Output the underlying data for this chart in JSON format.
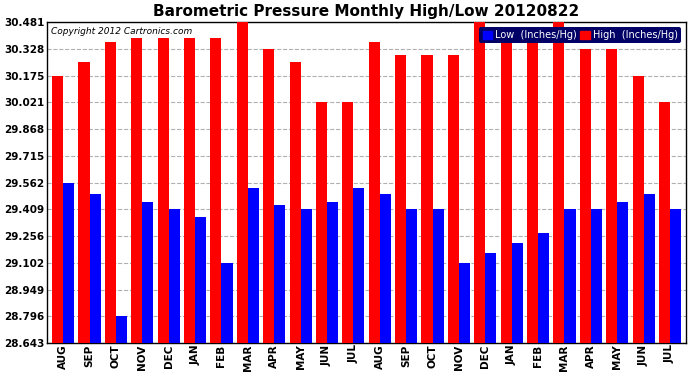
{
  "title": "Barometric Pressure Monthly High/Low 20120822",
  "copyright": "Copyright 2012 Cartronics.com",
  "legend_low": "Low  (Inches/Hg)",
  "legend_high": "High  (Inches/Hg)",
  "months": [
    "AUG",
    "SEP",
    "OCT",
    "NOV",
    "DEC",
    "JAN",
    "FEB",
    "MAR",
    "APR",
    "MAY",
    "JUN",
    "JUL",
    "AUG",
    "SEP",
    "OCT",
    "NOV",
    "DEC",
    "JAN",
    "FEB",
    "MAR",
    "APR",
    "MAY",
    "JUN",
    "JUL"
  ],
  "high_values": [
    30.175,
    30.255,
    30.368,
    30.388,
    30.388,
    30.388,
    30.388,
    30.481,
    30.328,
    30.255,
    30.021,
    30.021,
    30.368,
    30.295,
    30.295,
    30.295,
    30.481,
    30.388,
    30.388,
    30.481,
    30.328,
    30.328,
    30.175,
    30.021
  ],
  "low_values": [
    29.562,
    29.495,
    28.796,
    29.449,
    29.409,
    29.362,
    29.102,
    29.529,
    29.435,
    29.409,
    29.449,
    29.529,
    29.495,
    29.409,
    29.409,
    29.102,
    29.156,
    29.215,
    29.275,
    29.409,
    29.409,
    29.449,
    29.495,
    29.409
  ],
  "ymin": 28.643,
  "ymax": 30.481,
  "yticks": [
    28.643,
    28.796,
    28.949,
    29.102,
    29.256,
    29.409,
    29.562,
    29.715,
    29.868,
    30.021,
    30.175,
    30.328,
    30.481
  ],
  "bar_color_high": "#ff0000",
  "bar_color_low": "#0000ff",
  "background_color": "#ffffff",
  "grid_color": "#b0b0b0",
  "title_fontsize": 11,
  "tick_fontsize": 7.5,
  "bar_width": 0.42
}
